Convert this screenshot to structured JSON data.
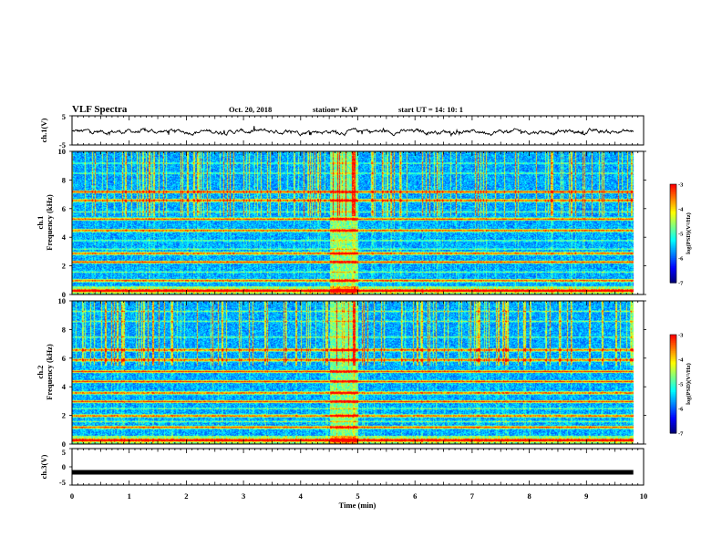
{
  "header": {
    "title": "VLF Spectra",
    "date": "Oct. 20, 2018",
    "station": "station= KAP",
    "start": "start  UT =   14: 10: 1"
  },
  "colors": {
    "colormap": [
      "#00007f",
      "#0000ff",
      "#0080ff",
      "#00ffff",
      "#80ff80",
      "#ffff00",
      "#ff8000",
      "#ff0000",
      "#ffffff"
    ],
    "trace": "#000000"
  },
  "chart_data": [
    {
      "type": "line",
      "panel": "ch1-waveform",
      "ylabel": "ch.1(V)",
      "ylim": [
        -5,
        5
      ],
      "yticks": [
        "5",
        "-5"
      ],
      "xlim": [
        0,
        10
      ],
      "series": [
        {
          "description_source": "noisy waveform",
          "y_mean": -0.4,
          "y_range": [
            -1.8,
            1.5
          ]
        }
      ]
    },
    {
      "type": "heatmap",
      "panel": "ch1-spectrogram",
      "ylabel": "ch.1\nFrequency (kHz)",
      "ylabel_line1": "ch.1",
      "ylabel_line2": "Frequency (kHz)",
      "ylim": [
        0,
        10
      ],
      "yticks": [
        "0",
        "2",
        "4",
        "6",
        "8",
        "10"
      ],
      "xlim": [
        0,
        10
      ],
      "colorbar": {
        "label": "log(PSD)(V²/Hz)",
        "range": [
          -7,
          -3
        ],
        "ticks": [
          "-3",
          "-4",
          "-5",
          "-6",
          "-7"
        ]
      },
      "strong_bands_khz": [
        0.3,
        1.0,
        2.3,
        2.9,
        4.5,
        5.3,
        6.6,
        7.2
      ],
      "weak_bands_khz": [
        1.6,
        3.2,
        3.8,
        5.8,
        8.5,
        9.2
      ],
      "burst_time_min": [
        4.5,
        5.0
      ]
    },
    {
      "type": "heatmap",
      "panel": "ch2-spectrogram",
      "ylabel": "ch.2\nFrequency (kHz)",
      "ylabel_line1": "ch.2",
      "ylabel_line2": "Frequency (kHz)",
      "ylim": [
        0,
        10
      ],
      "yticks": [
        "0",
        "2",
        "4",
        "6",
        "8",
        "10"
      ],
      "xlim": [
        0,
        10
      ],
      "colorbar": {
        "label": "log(PSD)(V²/Hz)",
        "range": [
          -7,
          -3
        ],
        "ticks": [
          "-3",
          "-4",
          "-5",
          "-6",
          "-7"
        ]
      },
      "strong_bands_khz": [
        0.3,
        1.2,
        2.0,
        3.0,
        3.6,
        4.4,
        5.1,
        5.9,
        6.6
      ],
      "weak_bands_khz": [
        1.6,
        2.5,
        7.5,
        8.6,
        9.3
      ],
      "burst_time_min": [
        4.5,
        5.0
      ]
    },
    {
      "type": "line",
      "panel": "ch3-waveform",
      "ylabel": "ch.3(V)",
      "ylim": [
        -5,
        5
      ],
      "yticks": [
        "5",
        "0",
        "-5"
      ],
      "xlim": [
        0,
        10
      ],
      "xlabel": "Time  (min)",
      "xticks": [
        "0",
        "1",
        "2",
        "3",
        "4",
        "5",
        "6",
        "7",
        "8",
        "9",
        "10"
      ],
      "series": [
        {
          "y_constant": -1.5,
          "x_range": [
            0,
            9.82
          ]
        }
      ]
    }
  ]
}
